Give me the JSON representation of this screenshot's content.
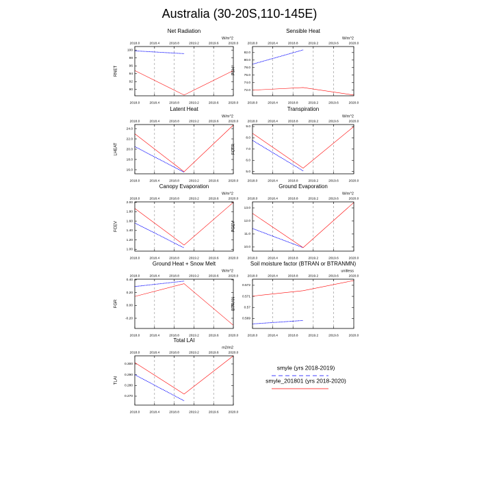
{
  "title": "Australia (30-20S,110-145E)",
  "legend": [
    {
      "name": "smyle (yrs 2018-2019)",
      "color": "#0000ff",
      "dash": true
    },
    {
      "name": "smyle_201801 (yrs 2018-2020)",
      "color": "#ff0000",
      "dash": false
    }
  ],
  "chart_data": [
    {
      "type": "line",
      "title": "Net Radiation",
      "units": "W/m^2",
      "ylabel": "RNET",
      "xlim": [
        2018,
        2020
      ],
      "xticks": [
        {
          "value": 2018,
          "label": "2018.0"
        },
        2018.4,
        2018.8,
        2019.2,
        2019.6,
        {
          "value": 2020,
          "label": "2020.0"
        }
      ],
      "xgrid": true,
      "ylim": [
        88.4,
        100.9
      ],
      "yticks": [
        90,
        92,
        94,
        96,
        98,
        100
      ],
      "series": [
        {
          "x": [
            2018,
            2019
          ],
          "values": [
            99.8,
            99.1
          ]
        },
        {
          "x": [
            2018,
            2019,
            2020
          ],
          "values": [
            94.8,
            88.6,
            94.8
          ]
        }
      ]
    },
    {
      "type": "line",
      "title": "Sensible Heat",
      "units": "W/m^2",
      "ylabel": "FSH",
      "xlim": [
        2018,
        2020
      ],
      "xticks": [
        {
          "value": 2018,
          "label": "2018.0"
        },
        2018.4,
        2018.8,
        2019.2,
        2019.6,
        {
          "value": 2020,
          "label": "2020.0"
        }
      ],
      "xgrid": true,
      "ylim": [
        70.5,
        83.6
      ],
      "yticks": [
        {
          "value": 72,
          "label": "72.0"
        },
        {
          "value": 74,
          "label": "74.0"
        },
        {
          "value": 76,
          "label": "76.0"
        },
        {
          "value": 78,
          "label": "78.0"
        },
        {
          "value": 80,
          "label": "80.0"
        },
        {
          "value": 82,
          "label": "82.0"
        }
      ],
      "series": [
        {
          "x": [
            2018,
            2019
          ],
          "values": [
            78.9,
            82.7
          ]
        },
        {
          "x": [
            2018,
            2019,
            2020
          ],
          "values": [
            72.0,
            72.7,
            70.7
          ]
        }
      ]
    },
    {
      "type": "line",
      "title": "Latent Heat",
      "units": "W/m^2",
      "ylabel": "LHEAT",
      "xlim": [
        2018,
        2020
      ],
      "xticks": [
        {
          "value": 2018,
          "label": "2018.0"
        },
        2018.4,
        2018.8,
        2019.2,
        2019.6,
        {
          "value": 2020,
          "label": "2020.0"
        }
      ],
      "xgrid": true,
      "ylim": [
        15.2,
        24.8
      ],
      "yticks": [
        {
          "value": 16,
          "label": "16.0"
        },
        {
          "value": 18,
          "label": "18.0"
        },
        {
          "value": 20,
          "label": "20.0"
        },
        {
          "value": 22,
          "label": "22.0"
        },
        {
          "value": 24,
          "label": "24.0"
        }
      ],
      "series": [
        {
          "x": [
            2018,
            2019
          ],
          "values": [
            20.5,
            15.5
          ]
        },
        {
          "x": [
            2018,
            2019,
            2020
          ],
          "values": [
            23.0,
            15.6,
            24.7
          ]
        }
      ]
    },
    {
      "type": "line",
      "title": "Transpiration",
      "units": "W/m^2",
      "ylabel": "FCTR",
      "xlim": [
        2018,
        2020
      ],
      "xticks": [
        {
          "value": 2018,
          "label": "2018.0"
        },
        2018.4,
        2018.8,
        2019.2,
        2019.6,
        {
          "value": 2020,
          "label": "2020.0"
        }
      ],
      "xgrid": true,
      "ylim": [
        4.8,
        9.18
      ],
      "yticks": [
        {
          "value": 5,
          "label": "5.0"
        },
        {
          "value": 6,
          "label": "6.0"
        },
        {
          "value": 7,
          "label": "7.0"
        },
        {
          "value": 8,
          "label": "8.0"
        },
        {
          "value": 9,
          "label": "9.0"
        }
      ],
      "series": [
        {
          "x": [
            2018,
            2019
          ],
          "values": [
            7.77,
            5.06
          ]
        },
        {
          "x": [
            2018,
            2019,
            2020
          ],
          "values": [
            8.4,
            5.3,
            9.0
          ]
        }
      ]
    },
    {
      "type": "line",
      "title": "Canopy Evaporation",
      "units": "W/m^2",
      "ylabel": "FCEV",
      "xlim": [
        2018,
        2020
      ],
      "xticks": [
        {
          "value": 2018,
          "label": "2018.0"
        },
        2018.4,
        2018.8,
        2019.2,
        2019.6,
        {
          "value": 2020,
          "label": "2020.0"
        }
      ],
      "xgrid": true,
      "ylim": [
        0.96,
        2.01
      ],
      "yticks": [
        {
          "value": 1,
          "label": "1.00"
        },
        {
          "value": 1.2,
          "label": "1.20"
        },
        {
          "value": 1.4,
          "label": "1.40"
        },
        {
          "value": 1.6,
          "label": "1.60"
        },
        {
          "value": 1.8,
          "label": "1.80"
        },
        {
          "value": 2,
          "label": "2.00"
        }
      ],
      "series": [
        {
          "x": [
            2018,
            2019
          ],
          "values": [
            1.56,
            1.03
          ]
        },
        {
          "x": [
            2018,
            2019,
            2020
          ],
          "values": [
            1.87,
            1.09,
            2.0
          ]
        }
      ]
    },
    {
      "type": "line",
      "title": "Ground Evaporation",
      "units": "W/m^2",
      "ylabel": "FGEV",
      "xlim": [
        2018,
        2020
      ],
      "xticks": [
        {
          "value": 2018,
          "label": "2018.0"
        },
        2018.4,
        2018.8,
        2019.2,
        2019.6,
        {
          "value": 2020,
          "label": "2020.0"
        }
      ],
      "xgrid": true,
      "ylim": [
        9.68,
        13.47
      ],
      "yticks": [
        {
          "value": 10,
          "label": "10.0"
        },
        {
          "value": 11,
          "label": "11.0"
        },
        {
          "value": 12,
          "label": "12.0"
        },
        {
          "value": 13,
          "label": "13.0"
        }
      ],
      "series": [
        {
          "x": [
            2018,
            2019
          ],
          "values": [
            11.42,
            9.95
          ]
        },
        {
          "x": [
            2018,
            2019,
            2020
          ],
          "values": [
            12.58,
            9.95,
            13.42
          ]
        }
      ]
    },
    {
      "type": "line",
      "title": "Ground Heat + Snow Melt",
      "units": "W/m^2",
      "ylabel": "FGR",
      "xlim": [
        2018,
        2020
      ],
      "xticks": [
        {
          "value": 2018,
          "label": "2018.0"
        },
        2018.4,
        2018.8,
        2019.2,
        2019.6,
        {
          "value": 2020,
          "label": "2020.0"
        }
      ],
      "xgrid": true,
      "ylim": [
        -0.36,
        0.41
      ],
      "yticks": [
        {
          "value": -0.2,
          "label": "-0.20"
        },
        {
          "value": 0,
          "label": "0.00"
        },
        {
          "value": 0.2,
          "label": "0.20"
        },
        {
          "value": 0.4,
          "label": "0.40"
        }
      ],
      "series": [
        {
          "x": [
            2018,
            2019
          ],
          "values": [
            0.295,
            0.38
          ]
        },
        {
          "x": [
            2018,
            2019,
            2020
          ],
          "values": [
            0.14,
            0.34,
            -0.31
          ]
        }
      ]
    },
    {
      "type": "line",
      "title": "Soil moisture factor (BTRAN or BTRANMN)",
      "units": "unitless",
      "ylabel": "BTRAN",
      "xlim": [
        2018,
        2020
      ],
      "xticks": [
        {
          "value": 2018,
          "label": "2018.0"
        },
        2018.4,
        2018.8,
        2019.2,
        2019.6,
        {
          "value": 2020,
          "label": "2020.0"
        }
      ],
      "xgrid": true,
      "ylim": [
        0.5681,
        0.57255
      ],
      "yticks": [
        0.569,
        0.57,
        0.571,
        0.572
      ],
      "ytick_labels_note": null,
      "series": [
        {
          "x": [
            2018,
            2019
          ],
          "values": [
            0.56851,
            0.56882
          ]
        },
        {
          "x": [
            2018,
            2019,
            2020
          ],
          "values": [
            0.57102,
            0.57151,
            0.57243
          ]
        }
      ]
    },
    {
      "type": "line",
      "title": "Total LAI",
      "units": "m2/m2",
      "ylabel": "TLAI",
      "xlim": [
        2018,
        2020
      ],
      "xticks": [
        {
          "value": 2018,
          "label": "2018.0"
        },
        2018.4,
        2018.8,
        2019.2,
        2019.6,
        {
          "value": 2020,
          "label": "2020.0"
        }
      ],
      "xgrid": true,
      "ylim": [
        0.2617,
        0.3076
      ],
      "yticks": [
        {
          "value": 0.27,
          "label": "0.270"
        },
        {
          "value": 0.28,
          "label": "0.280"
        },
        {
          "value": 0.29,
          "label": "0.290"
        },
        {
          "value": 0.3,
          "label": "0.300"
        }
      ],
      "series": [
        {
          "x": [
            2018,
            2019
          ],
          "values": [
            0.29,
            0.2657
          ]
        },
        {
          "x": [
            2018,
            2019,
            2020
          ],
          "values": [
            0.3013,
            0.272,
            0.3076
          ]
        }
      ]
    }
  ]
}
